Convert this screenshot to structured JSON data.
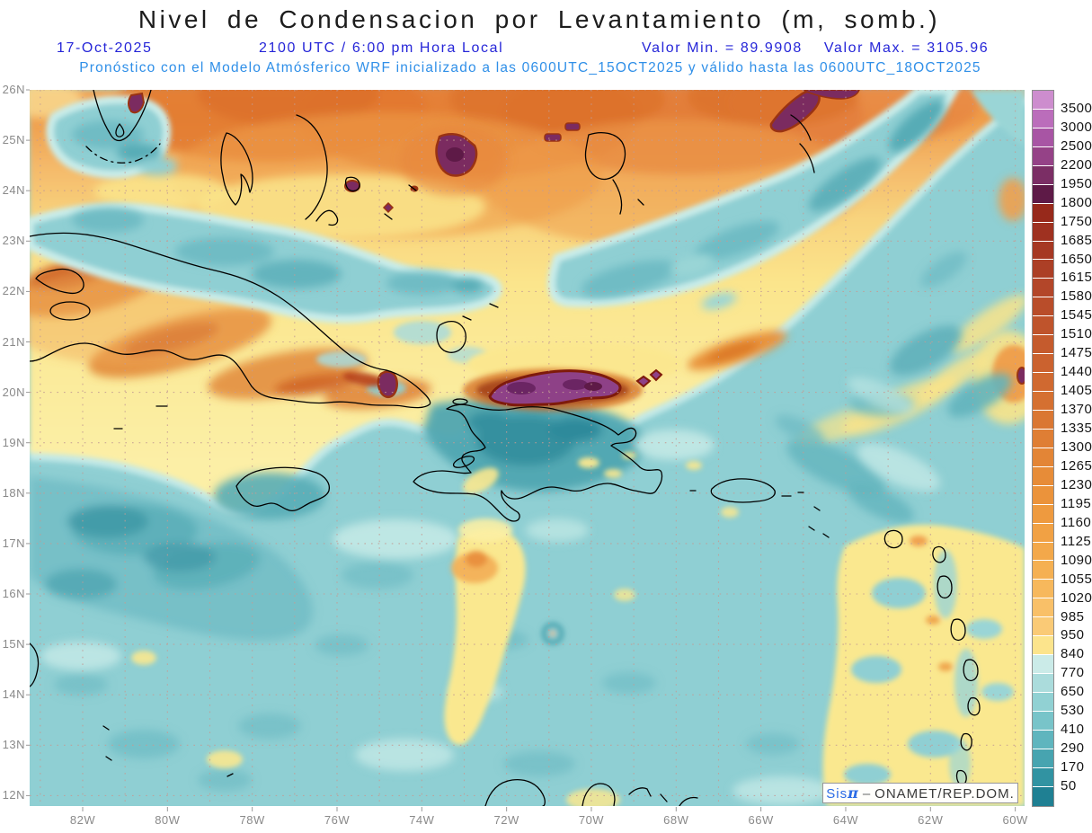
{
  "header": {
    "title": "Nivel de Condensacion por Levantamiento (m, somb.)",
    "date": "17-Oct-2025",
    "time": "2100 UTC / 6:00 pm Hora Local",
    "min_label": "Valor Min. = 89.9908",
    "max_label": "Valor Max. = 3105.96",
    "forecast_line": "Pronóstico con el Modelo Atmósferico WRF inicializado a las 0600UTC_15OCT2025 y válido hasta las  0600UTC_18OCT2025"
  },
  "map": {
    "lat_labels": [
      "26N",
      "25N",
      "24N",
      "23N",
      "22N",
      "21N",
      "20N",
      "19N",
      "18N",
      "17N",
      "16N",
      "15N",
      "14N",
      "13N",
      "12N"
    ],
    "lon_labels": [
      "82W",
      "80W",
      "78W",
      "76W",
      "74W",
      "72W",
      "70W",
      "68W",
      "66W",
      "64W",
      "62W",
      "60W"
    ],
    "watermark": {
      "prefix": "Sis",
      "pi": "π",
      "separator": "–",
      "org": "ONAMET/REP.DOM."
    }
  },
  "colorbar": {
    "levels": [
      3500,
      3000,
      2500,
      2200,
      1950,
      1800,
      1750,
      1685,
      1650,
      1615,
      1580,
      1545,
      1510,
      1475,
      1440,
      1405,
      1370,
      1335,
      1300,
      1265,
      1230,
      1195,
      1160,
      1125,
      1090,
      1055,
      1020,
      985,
      950,
      840,
      770,
      650,
      530,
      410,
      290,
      170,
      50
    ],
    "colors": [
      "#CD8DCE",
      "#BB6DBB",
      "#A855A4",
      "#954287",
      "#7B2E65",
      "#5E1A47",
      "#97291B",
      "#9F3120",
      "#A63823",
      "#AC3F26",
      "#B34629",
      "#B94D2A",
      "#BF542C",
      "#C55B2D",
      "#CB622F",
      "#D06930",
      "#D57031",
      "#DA7733",
      "#DF7E34",
      "#E38536",
      "#E78C38",
      "#EB933B",
      "#EE9A3F",
      "#F1A144",
      "#F3A84A",
      "#F5B052",
      "#F7B85C",
      "#F9C068",
      "#FACA76",
      "#FCE48C",
      "#CBEBE8",
      "#ABDCDC",
      "#91D1D3",
      "#78C4C9",
      "#5FB5BE",
      "#47A4B0",
      "#3193A2",
      "#1F8093"
    ]
  },
  "colors": {
    "header_blue": "#2626D8",
    "forecast_blue": "#2F8FE8",
    "axis_gray": "#8a8a8a",
    "grid_dots": "#C49C94",
    "coastline": "#000000",
    "sea_teal": "#8FCFD3",
    "warm_yellow": "#FBE58C",
    "warm_orange": "#EE9C49",
    "maxima_purple": "#8E4187",
    "maxima_rim": "#7E1A0B",
    "watermark_blue": "#2B6BE6"
  }
}
